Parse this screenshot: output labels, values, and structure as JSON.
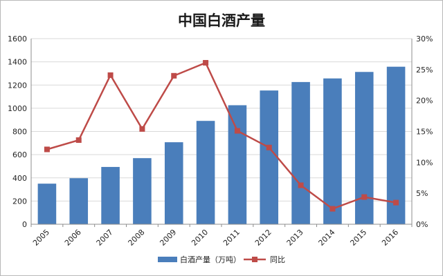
{
  "chart_data": {
    "type": "bar",
    "title": "中国白酒产量",
    "categories": [
      "2005",
      "2006",
      "2007",
      "2008",
      "2009",
      "2010",
      "2011",
      "2012",
      "2013",
      "2014",
      "2015",
      "2016"
    ],
    "series": [
      {
        "name": "白酒产量（万吨）",
        "type": "bar",
        "axis": "left",
        "color": "#4a7ebb",
        "values": [
          350,
          397,
          494,
          570,
          707,
          891,
          1026,
          1153,
          1226,
          1257,
          1313,
          1358
        ]
      },
      {
        "name": "同比",
        "type": "line",
        "axis": "right",
        "color": "#be4b48",
        "values": [
          12.1,
          13.6,
          24.1,
          15.4,
          24.0,
          26.1,
          15.1,
          12.4,
          6.3,
          2.5,
          4.4,
          3.5
        ]
      }
    ],
    "ylim": [
      0,
      1600
    ],
    "yticks": [
      "0",
      "200",
      "400",
      "600",
      "800",
      "1000",
      "1200",
      "1400",
      "1600"
    ],
    "y2lim": [
      0,
      30
    ],
    "y2ticks": [
      "0%",
      "5%",
      "10%",
      "15%",
      "20%",
      "25%",
      "30%"
    ],
    "grid": true,
    "legend": "bottom"
  }
}
